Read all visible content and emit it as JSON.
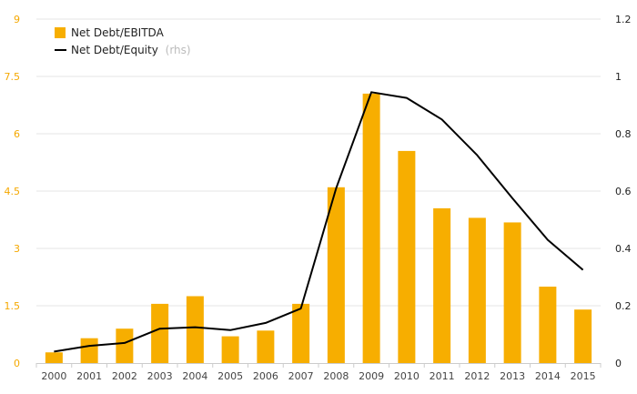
{
  "chart_data": {
    "type": "bar",
    "categories": [
      "2000",
      "2001",
      "2002",
      "2003",
      "2004",
      "2005",
      "2006",
      "2007",
      "2008",
      "2009",
      "2010",
      "2011",
      "2012",
      "2013",
      "2014",
      "2015"
    ],
    "series": [
      {
        "name": "Net Debt/EBITDA",
        "type": "bar",
        "axis": "left",
        "color": "#f7ae00",
        "values": [
          0.28,
          0.65,
          0.9,
          1.55,
          1.75,
          0.7,
          0.85,
          1.55,
          4.6,
          7.05,
          5.55,
          4.05,
          3.8,
          3.68,
          2.0,
          1.4
        ]
      },
      {
        "name": "Net Debt/Equity",
        "suffix": "(rhs)",
        "type": "line",
        "axis": "right",
        "color": "#000000",
        "values": [
          0.04,
          0.06,
          0.07,
          0.12,
          0.125,
          0.115,
          0.14,
          0.19,
          0.61,
          0.945,
          0.925,
          0.85,
          0.725,
          0.575,
          0.43,
          0.325
        ]
      }
    ],
    "y_left": {
      "ylim": [
        0,
        9
      ],
      "ticks": [
        "0",
        "1.5",
        "3",
        "4.5",
        "6",
        "7.5",
        "9"
      ],
      "color": "#f5a800"
    },
    "y_right": {
      "ylim": [
        0,
        1.2
      ],
      "ticks": [
        "0",
        "0.2",
        "0.4",
        "0.6",
        "0.8",
        "1",
        "1.2"
      ]
    },
    "grid": true,
    "legend_position": "top-left"
  }
}
